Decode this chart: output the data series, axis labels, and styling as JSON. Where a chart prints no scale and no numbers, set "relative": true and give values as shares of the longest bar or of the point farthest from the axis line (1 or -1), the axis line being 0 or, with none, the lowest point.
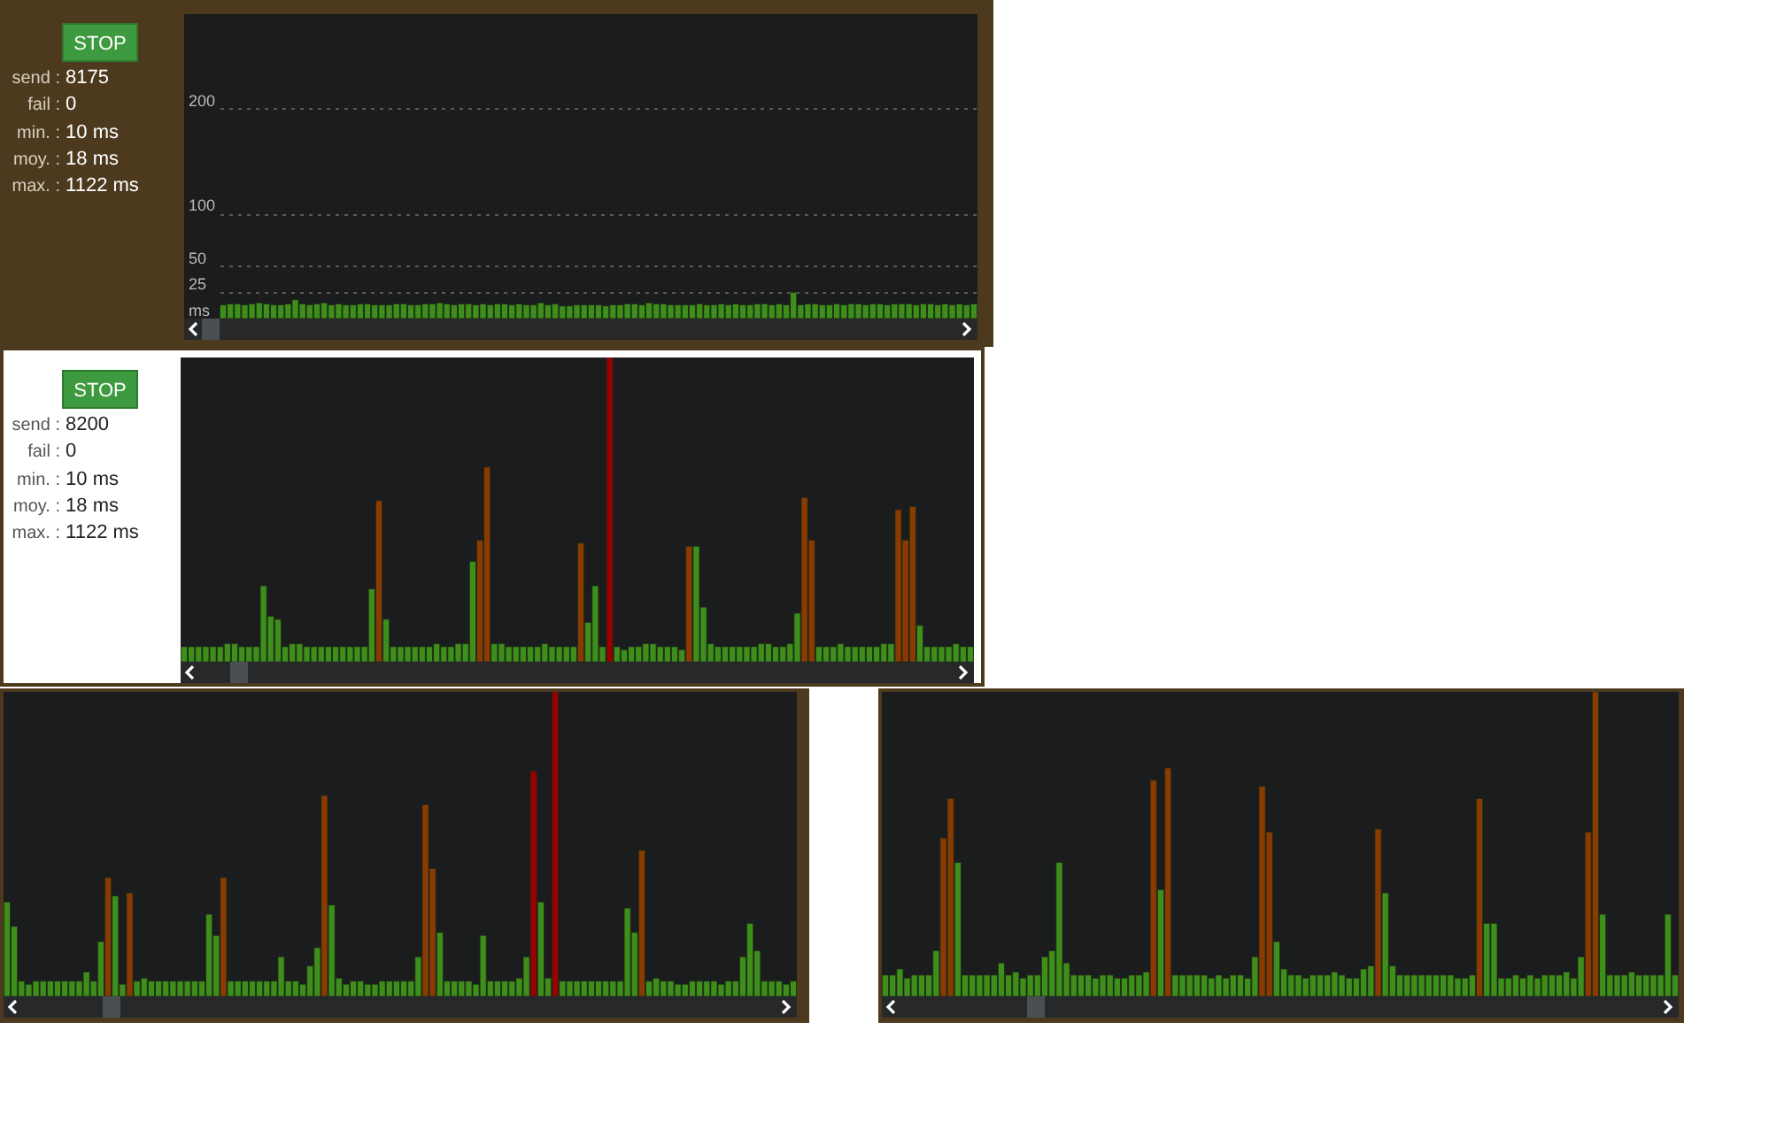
{
  "chart_data": [
    {
      "type": "bar",
      "annotations": [
        "STOP",
        "send : 8175",
        "fail : 0",
        "min. : 10 ms",
        "moy. : 18 ms",
        "max. : 1122 ms"
      ],
      "categories": [
        null,
        null,
        null,
        null,
        null,
        null,
        null,
        null,
        null,
        null,
        null,
        null,
        null,
        null,
        null,
        null,
        null,
        null,
        null,
        null,
        null,
        null,
        null,
        null,
        null,
        null,
        null,
        null,
        null,
        null,
        null,
        null,
        null,
        null,
        null,
        null,
        null,
        null,
        null,
        null,
        null,
        null,
        null,
        null,
        null,
        null,
        null,
        null,
        null,
        null,
        null,
        null,
        null,
        null,
        null,
        null,
        null,
        null,
        null,
        null,
        null,
        null,
        null,
        null,
        null,
        null,
        null,
        null,
        null,
        null,
        null,
        null,
        null,
        null,
        null,
        null,
        null,
        null,
        null,
        null,
        null,
        null,
        null,
        null,
        null,
        null,
        null,
        null,
        null,
        null,
        null,
        null,
        null,
        null,
        null,
        null,
        null,
        null,
        null,
        null,
        null,
        null,
        null,
        null,
        null
      ],
      "values": [
        13,
        14,
        14,
        13,
        14,
        15,
        14,
        13,
        13,
        14,
        18,
        14,
        13,
        14,
        15,
        13,
        14,
        13,
        13,
        14,
        14,
        13,
        13,
        13,
        14,
        14,
        13,
        13,
        14,
        14,
        15,
        14,
        13,
        14,
        14,
        13,
        14,
        13,
        14,
        14,
        13,
        14,
        13,
        13,
        15,
        13,
        14,
        12,
        12,
        13,
        13,
        13,
        13,
        12,
        13,
        13,
        14,
        14,
        13,
        15,
        14,
        14,
        13,
        13,
        13,
        13,
        14,
        13,
        13,
        14,
        13,
        14,
        13,
        13,
        14,
        14,
        13,
        14,
        13,
        25,
        13,
        14,
        14,
        13,
        13,
        14,
        13,
        14,
        14,
        13,
        14,
        14,
        13,
        14,
        14,
        14,
        13,
        14,
        14,
        13,
        14,
        13,
        14,
        13,
        14
      ],
      "color": "#3e8e1c",
      "ylim": [
        0,
        290
      ],
      "yticks": [
        {
          "value": 0,
          "label": "ms"
        },
        25,
        50,
        100,
        200
      ],
      "grid": "y"
    },
    {
      "type": "bar",
      "relative": true,
      "annotations": [
        "STOP",
        "send : 8200",
        "fail : 0",
        "min. : 10 ms",
        "moy. : 18 ms",
        "max. : 1122 ms"
      ],
      "categories": [
        null,
        null,
        null,
        null,
        null,
        null,
        null,
        null,
        null,
        null,
        null,
        null,
        null,
        null,
        null,
        null,
        null,
        null,
        null,
        null,
        null,
        null,
        null,
        null,
        null,
        null,
        null,
        null,
        null,
        null,
        null,
        null,
        null,
        null,
        null,
        null,
        null,
        null,
        null,
        null,
        null,
        null,
        null,
        null,
        null,
        null,
        null,
        null,
        null,
        null,
        null,
        null,
        null,
        null,
        null,
        null,
        null,
        null,
        null,
        null,
        null,
        null,
        null,
        null,
        null,
        null,
        null,
        null,
        null,
        null,
        null,
        null,
        null,
        null,
        null,
        null,
        null,
        null,
        null,
        null,
        null,
        null,
        null,
        null,
        null,
        null,
        null,
        null,
        null,
        null,
        null,
        null,
        null,
        null,
        null,
        null,
        null,
        null,
        null,
        null,
        null,
        null,
        null,
        null,
        null,
        null,
        null,
        null,
        null,
        null
      ],
      "values": [
        0.05,
        0.05,
        0.05,
        0.05,
        0.05,
        0.05,
        0.06,
        0.06,
        0.05,
        0.05,
        0.05,
        0.25,
        0.15,
        0.14,
        0.05,
        0.06,
        0.06,
        0.05,
        0.05,
        0.05,
        0.05,
        0.05,
        0.05,
        0.05,
        0.05,
        0.05,
        0.24,
        0.53,
        0.14,
        0.05,
        0.05,
        0.05,
        0.05,
        0.05,
        0.05,
        0.06,
        0.05,
        0.05,
        0.06,
        0.06,
        0.33,
        0.4,
        0.64,
        0.06,
        0.06,
        0.05,
        0.05,
        0.05,
        0.05,
        0.05,
        0.06,
        0.05,
        0.05,
        0.05,
        0.05,
        0.39,
        0.13,
        0.25,
        0.05,
        1,
        0.05,
        0.04,
        0.05,
        0.05,
        0.06,
        0.06,
        0.05,
        0.05,
        0.05,
        0.04,
        0.38,
        0.38,
        0.18,
        0.06,
        0.05,
        0.05,
        0.05,
        0.05,
        0.05,
        0.05,
        0.06,
        0.06,
        0.05,
        0.05,
        0.06,
        0.16,
        0.54,
        0.4,
        0.05,
        0.05,
        0.05,
        0.06,
        0.05,
        0.05,
        0.05,
        0.05,
        0.05,
        0.06,
        0.06,
        0.5,
        0.4,
        0.51,
        0.12,
        0.05,
        0.05,
        0.05,
        0.05,
        0.06,
        0.05,
        0.05
      ],
      "colors": [
        "#3e8e1c",
        "#3e8e1c",
        "#3e8e1c",
        "#3e8e1c",
        "#3e8e1c",
        "#3e8e1c",
        "#3e8e1c",
        "#3e8e1c",
        "#3e8e1c",
        "#3e8e1c",
        "#3e8e1c",
        "#3e8e1c",
        "#3e8e1c",
        "#3e8e1c",
        "#3e8e1c",
        "#3e8e1c",
        "#3e8e1c",
        "#3e8e1c",
        "#3e8e1c",
        "#3e8e1c",
        "#3e8e1c",
        "#3e8e1c",
        "#3e8e1c",
        "#3e8e1c",
        "#3e8e1c",
        "#3e8e1c",
        "#3e8e1c",
        "#8a3b02",
        "#3e8e1c",
        "#3e8e1c",
        "#3e8e1c",
        "#3e8e1c",
        "#3e8e1c",
        "#3e8e1c",
        "#3e8e1c",
        "#3e8e1c",
        "#3e8e1c",
        "#3e8e1c",
        "#3e8e1c",
        "#3e8e1c",
        "#3e8e1c",
        "#8a3b02",
        "#8a3b02",
        "#3e8e1c",
        "#3e8e1c",
        "#3e8e1c",
        "#3e8e1c",
        "#3e8e1c",
        "#3e8e1c",
        "#3e8e1c",
        "#3e8e1c",
        "#3e8e1c",
        "#3e8e1c",
        "#3e8e1c",
        "#3e8e1c",
        "#8a3b02",
        "#3e8e1c",
        "#3e8e1c",
        "#3e8e1c",
        "#9b0000",
        "#3e8e1c",
        "#3e8e1c",
        "#3e8e1c",
        "#3e8e1c",
        "#3e8e1c",
        "#3e8e1c",
        "#3e8e1c",
        "#3e8e1c",
        "#3e8e1c",
        "#3e8e1c",
        "#8a3b02",
        "#3e8e1c",
        "#3e8e1c",
        "#3e8e1c",
        "#3e8e1c",
        "#3e8e1c",
        "#3e8e1c",
        "#3e8e1c",
        "#3e8e1c",
        "#3e8e1c",
        "#3e8e1c",
        "#3e8e1c",
        "#3e8e1c",
        "#3e8e1c",
        "#3e8e1c",
        "#3e8e1c",
        "#8a3b02",
        "#8a3b02",
        "#3e8e1c",
        "#3e8e1c",
        "#3e8e1c",
        "#3e8e1c",
        "#3e8e1c",
        "#3e8e1c",
        "#3e8e1c",
        "#3e8e1c",
        "#3e8e1c",
        "#3e8e1c",
        "#3e8e1c",
        "#8a3b02",
        "#8a3b02",
        "#8a3b02",
        "#3e8e1c",
        "#3e8e1c",
        "#3e8e1c",
        "#3e8e1c",
        "#3e8e1c",
        "#3e8e1c",
        "#3e8e1c",
        "#3e8e1c"
      ]
    },
    {
      "type": "bar",
      "relative": true,
      "categories": [
        null,
        null,
        null,
        null,
        null,
        null,
        null,
        null,
        null,
        null,
        null,
        null,
        null,
        null,
        null,
        null,
        null,
        null,
        null,
        null,
        null,
        null,
        null,
        null,
        null,
        null,
        null,
        null,
        null,
        null,
        null,
        null,
        null,
        null,
        null,
        null,
        null,
        null,
        null,
        null,
        null,
        null,
        null,
        null,
        null,
        null,
        null,
        null,
        null,
        null,
        null,
        null,
        null,
        null,
        null,
        null,
        null,
        null,
        null,
        null,
        null,
        null,
        null,
        null,
        null,
        null,
        null,
        null,
        null,
        null,
        null,
        null,
        null,
        null,
        null,
        null,
        null,
        null,
        null,
        null,
        null,
        null,
        null,
        null,
        null,
        null,
        null,
        null,
        null,
        null,
        null,
        null,
        null,
        null,
        null,
        null,
        null,
        null,
        null,
        null,
        null,
        null,
        null,
        null,
        null,
        null,
        null,
        null,
        null,
        null
      ],
      "values": [
        0.31,
        0.23,
        0.05,
        0.04,
        0.05,
        0.05,
        0.05,
        0.05,
        0.05,
        0.05,
        0.05,
        0.08,
        0.05,
        0.18,
        0.39,
        0.33,
        0.04,
        0.34,
        0.05,
        0.06,
        0.05,
        0.05,
        0.05,
        0.05,
        0.05,
        0.05,
        0.05,
        0.05,
        0.27,
        0.2,
        0.39,
        0.05,
        0.05,
        0.05,
        0.05,
        0.05,
        0.05,
        0.05,
        0.13,
        0.05,
        0.05,
        0.04,
        0.1,
        0.16,
        0.66,
        0.3,
        0.06,
        0.04,
        0.05,
        0.05,
        0.04,
        0.04,
        0.05,
        0.05,
        0.05,
        0.05,
        0.05,
        0.13,
        0.63,
        0.42,
        0.21,
        0.05,
        0.05,
        0.05,
        0.05,
        0.04,
        0.2,
        0.05,
        0.05,
        0.05,
        0.05,
        0.06,
        0.13,
        0.74,
        0.31,
        0.06,
        1,
        0.05,
        0.05,
        0.05,
        0.05,
        0.05,
        0.05,
        0.05,
        0.05,
        0.05,
        0.29,
        0.21,
        0.48,
        0.05,
        0.06,
        0.05,
        0.05,
        0.04,
        0.04,
        0.05,
        0.05,
        0.05,
        0.05,
        0.04,
        0.05,
        0.05,
        0.13,
        0.24,
        0.15,
        0.05,
        0.05,
        0.05,
        0.04,
        0.05
      ],
      "colors": [
        "#3e8e1c",
        "#3e8e1c",
        "#3e8e1c",
        "#3e8e1c",
        "#3e8e1c",
        "#3e8e1c",
        "#3e8e1c",
        "#3e8e1c",
        "#3e8e1c",
        "#3e8e1c",
        "#3e8e1c",
        "#3e8e1c",
        "#3e8e1c",
        "#3e8e1c",
        "#8a3b02",
        "#3e8e1c",
        "#3e8e1c",
        "#8a3b02",
        "#3e8e1c",
        "#3e8e1c",
        "#3e8e1c",
        "#3e8e1c",
        "#3e8e1c",
        "#3e8e1c",
        "#3e8e1c",
        "#3e8e1c",
        "#3e8e1c",
        "#3e8e1c",
        "#3e8e1c",
        "#3e8e1c",
        "#8a3b02",
        "#3e8e1c",
        "#3e8e1c",
        "#3e8e1c",
        "#3e8e1c",
        "#3e8e1c",
        "#3e8e1c",
        "#3e8e1c",
        "#3e8e1c",
        "#3e8e1c",
        "#3e8e1c",
        "#3e8e1c",
        "#3e8e1c",
        "#3e8e1c",
        "#8a3b02",
        "#3e8e1c",
        "#3e8e1c",
        "#3e8e1c",
        "#3e8e1c",
        "#3e8e1c",
        "#3e8e1c",
        "#3e8e1c",
        "#3e8e1c",
        "#3e8e1c",
        "#3e8e1c",
        "#3e8e1c",
        "#3e8e1c",
        "#3e8e1c",
        "#8a3b02",
        "#8a3b02",
        "#3e8e1c",
        "#3e8e1c",
        "#3e8e1c",
        "#3e8e1c",
        "#3e8e1c",
        "#3e8e1c",
        "#3e8e1c",
        "#3e8e1c",
        "#3e8e1c",
        "#3e8e1c",
        "#3e8e1c",
        "#3e8e1c",
        "#3e8e1c",
        "#9b0000",
        "#3e8e1c",
        "#3e8e1c",
        "#9b0000",
        "#3e8e1c",
        "#3e8e1c",
        "#3e8e1c",
        "#3e8e1c",
        "#3e8e1c",
        "#3e8e1c",
        "#3e8e1c",
        "#3e8e1c",
        "#3e8e1c",
        "#3e8e1c",
        "#3e8e1c",
        "#8a3b02",
        "#3e8e1c",
        "#3e8e1c",
        "#3e8e1c",
        "#3e8e1c",
        "#3e8e1c",
        "#3e8e1c",
        "#3e8e1c",
        "#3e8e1c",
        "#3e8e1c",
        "#3e8e1c",
        "#3e8e1c",
        "#3e8e1c",
        "#3e8e1c",
        "#3e8e1c",
        "#3e8e1c",
        "#3e8e1c",
        "#3e8e1c",
        "#3e8e1c",
        "#3e8e1c",
        "#3e8e1c",
        "#3e8e1c"
      ]
    },
    {
      "type": "bar",
      "relative": true,
      "categories": [
        null,
        null,
        null,
        null,
        null,
        null,
        null,
        null,
        null,
        null,
        null,
        null,
        null,
        null,
        null,
        null,
        null,
        null,
        null,
        null,
        null,
        null,
        null,
        null,
        null,
        null,
        null,
        null,
        null,
        null,
        null,
        null,
        null,
        null,
        null,
        null,
        null,
        null,
        null,
        null,
        null,
        null,
        null,
        null,
        null,
        null,
        null,
        null,
        null,
        null,
        null,
        null,
        null,
        null,
        null,
        null,
        null,
        null,
        null,
        null,
        null,
        null,
        null,
        null,
        null,
        null,
        null,
        null,
        null,
        null,
        null,
        null,
        null,
        null,
        null,
        null,
        null,
        null,
        null,
        null,
        null,
        null,
        null,
        null,
        null,
        null,
        null,
        null,
        null,
        null,
        null,
        null,
        null,
        null,
        null,
        null,
        null,
        null,
        null,
        null,
        null,
        null,
        null,
        null,
        null,
        null,
        null,
        null,
        null,
        null
      ],
      "values": [
        0.07,
        0.07,
        0.09,
        0.06,
        0.07,
        0.07,
        0.07,
        0.15,
        0.52,
        0.65,
        0.44,
        0.07,
        0.07,
        0.07,
        0.07,
        0.07,
        0.11,
        0.07,
        0.08,
        0.06,
        0.07,
        0.07,
        0.13,
        0.15,
        0.44,
        0.11,
        0.07,
        0.07,
        0.07,
        0.06,
        0.07,
        0.07,
        0.06,
        0.06,
        0.07,
        0.07,
        0.08,
        0.71,
        0.35,
        0.75,
        0.07,
        0.07,
        0.07,
        0.07,
        0.07,
        0.06,
        0.07,
        0.06,
        0.07,
        0.07,
        0.06,
        0.13,
        0.69,
        0.54,
        0.18,
        0.09,
        0.07,
        0.07,
        0.06,
        0.07,
        0.07,
        0.07,
        0.08,
        0.07,
        0.06,
        0.06,
        0.09,
        0.1,
        0.55,
        0.34,
        0.1,
        0.07,
        0.07,
        0.07,
        0.07,
        0.07,
        0.07,
        0.07,
        0.07,
        0.06,
        0.06,
        0.07,
        0.65,
        0.24,
        0.24,
        0.06,
        0.06,
        0.07,
        0.06,
        0.07,
        0.06,
        0.07,
        0.07,
        0.07,
        0.08,
        0.06,
        0.13,
        0.54,
        1,
        0.27,
        0.07,
        0.07,
        0.07,
        0.08,
        0.07,
        0.07,
        0.07,
        0.07,
        0.27,
        0.07
      ],
      "colors": [
        "#3e8e1c",
        "#3e8e1c",
        "#3e8e1c",
        "#3e8e1c",
        "#3e8e1c",
        "#3e8e1c",
        "#3e8e1c",
        "#3e8e1c",
        "#8a3b02",
        "#8a3b02",
        "#3e8e1c",
        "#3e8e1c",
        "#3e8e1c",
        "#3e8e1c",
        "#3e8e1c",
        "#3e8e1c",
        "#3e8e1c",
        "#3e8e1c",
        "#3e8e1c",
        "#3e8e1c",
        "#3e8e1c",
        "#3e8e1c",
        "#3e8e1c",
        "#3e8e1c",
        "#3e8e1c",
        "#3e8e1c",
        "#3e8e1c",
        "#3e8e1c",
        "#3e8e1c",
        "#3e8e1c",
        "#3e8e1c",
        "#3e8e1c",
        "#3e8e1c",
        "#3e8e1c",
        "#3e8e1c",
        "#3e8e1c",
        "#3e8e1c",
        "#8a3b02",
        "#3e8e1c",
        "#8a3b02",
        "#3e8e1c",
        "#3e8e1c",
        "#3e8e1c",
        "#3e8e1c",
        "#3e8e1c",
        "#3e8e1c",
        "#3e8e1c",
        "#3e8e1c",
        "#3e8e1c",
        "#3e8e1c",
        "#3e8e1c",
        "#3e8e1c",
        "#8a3b02",
        "#8a3b02",
        "#3e8e1c",
        "#3e8e1c",
        "#3e8e1c",
        "#3e8e1c",
        "#3e8e1c",
        "#3e8e1c",
        "#3e8e1c",
        "#3e8e1c",
        "#3e8e1c",
        "#3e8e1c",
        "#3e8e1c",
        "#3e8e1c",
        "#3e8e1c",
        "#3e8e1c",
        "#8a3b02",
        "#3e8e1c",
        "#3e8e1c",
        "#3e8e1c",
        "#3e8e1c",
        "#3e8e1c",
        "#3e8e1c",
        "#3e8e1c",
        "#3e8e1c",
        "#3e8e1c",
        "#3e8e1c",
        "#3e8e1c",
        "#3e8e1c",
        "#3e8e1c",
        "#8a3b02",
        "#3e8e1c",
        "#3e8e1c",
        "#3e8e1c",
        "#3e8e1c",
        "#3e8e1c",
        "#3e8e1c",
        "#3e8e1c",
        "#3e8e1c",
        "#3e8e1c",
        "#3e8e1c",
        "#3e8e1c",
        "#3e8e1c",
        "#3e8e1c",
        "#3e8e1c",
        "#8a3b02",
        "#8a3b02",
        "#3e8e1c",
        "#3e8e1c",
        "#3e8e1c",
        "#3e8e1c",
        "#3e8e1c",
        "#3e8e1c",
        "#3e8e1c",
        "#3e8e1c",
        "#3e8e1c",
        "#3e8e1c",
        "#3e8e1c"
      ]
    }
  ]
}
